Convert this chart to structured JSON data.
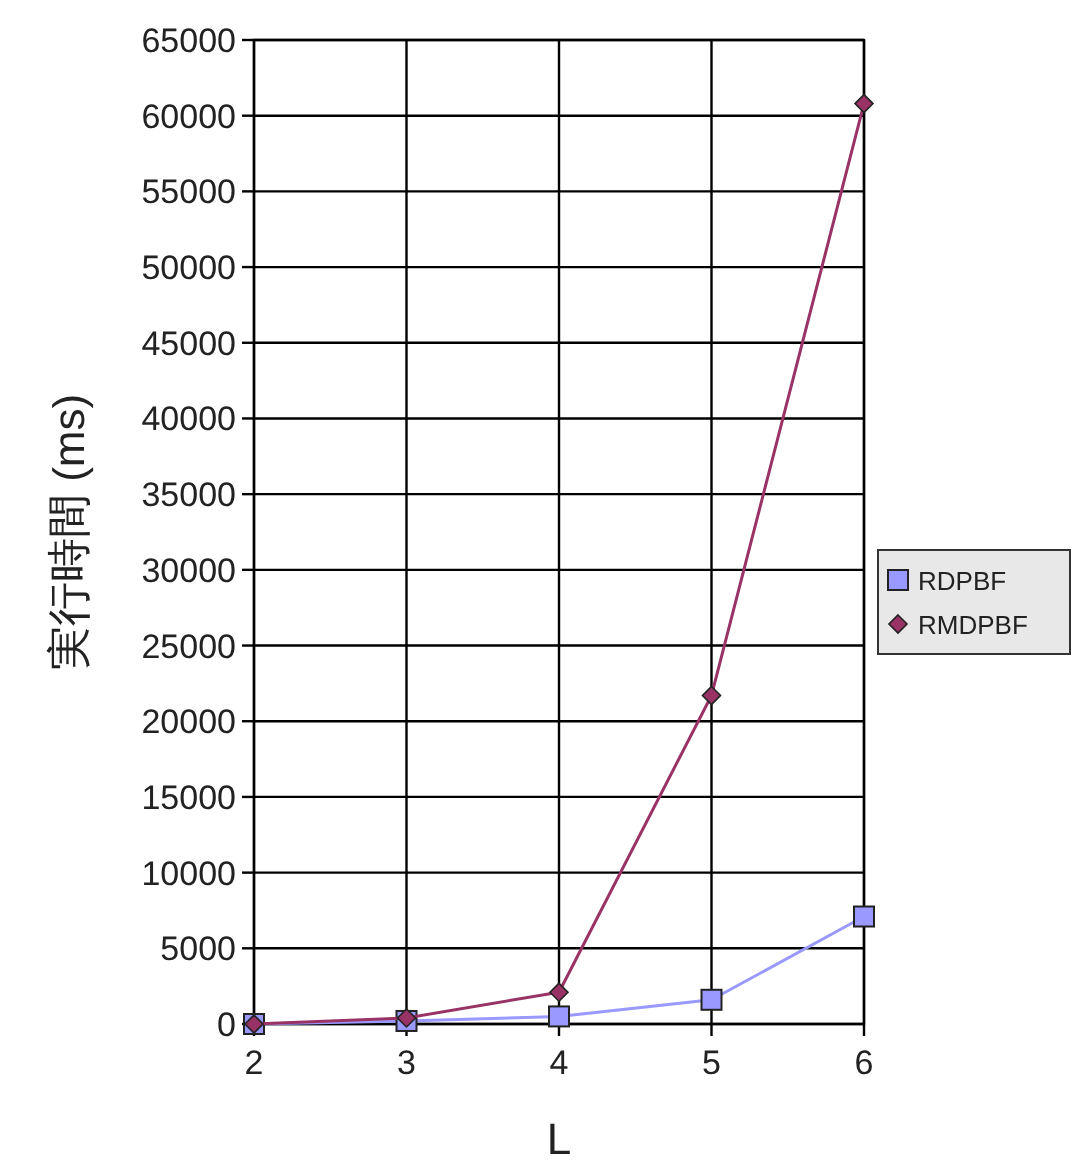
{
  "chart_data": {
    "type": "line",
    "xlabel": "L",
    "ylabel": "実行時間 (ms)",
    "x": [
      2,
      3,
      4,
      5,
      6
    ],
    "series": [
      {
        "name": "RDPBF",
        "color": "#9999ff",
        "marker": "square",
        "values": [
          0,
          200,
          500,
          1600,
          7100
        ]
      },
      {
        "name": "RMDPBF",
        "color": "#993366",
        "marker": "diamond",
        "values": [
          0,
          400,
          2100,
          21700,
          60800
        ]
      }
    ],
    "xlim": [
      2,
      6
    ],
    "xticks": [
      2,
      3,
      4,
      5,
      6
    ],
    "ylim": [
      0,
      65000
    ],
    "yticks": [
      0,
      5000,
      10000,
      15000,
      20000,
      25000,
      30000,
      35000,
      40000,
      45000,
      50000,
      55000,
      60000,
      65000
    ],
    "grid": true,
    "legend": "right"
  }
}
